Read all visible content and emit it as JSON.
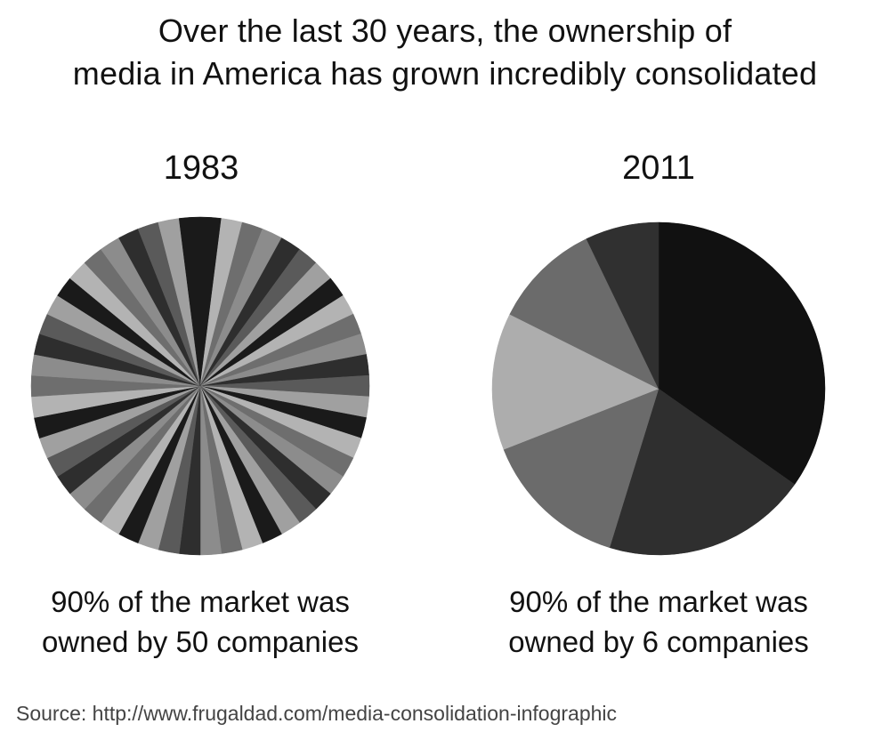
{
  "title": {
    "line1": "Over the last 30 years, the ownership of",
    "line2": "media in America has grown incredibly consolidated"
  },
  "chart_data": [
    {
      "type": "pie",
      "title": "1983",
      "caption_line1": "90% of the market was",
      "caption_line2": "owned by 50 companies",
      "values": [
        1,
        1,
        1,
        1,
        1,
        1,
        1,
        1,
        1,
        1,
        1,
        1,
        1,
        1,
        1,
        1,
        1,
        1,
        1,
        1,
        1,
        1,
        1,
        1,
        1,
        1,
        1,
        1,
        1,
        1,
        1,
        1,
        1,
        1,
        1,
        1,
        1,
        1,
        1,
        1,
        1,
        1,
        1,
        1,
        1,
        1,
        1,
        1,
        1,
        1
      ],
      "colors": [
        "#1a1a1a",
        "#b3b3b3",
        "#6e6e6e",
        "#8c8c8c",
        "#2e2e2e",
        "#5a5a5a",
        "#a0a0a0"
      ]
    },
    {
      "type": "pie",
      "title": "2011",
      "caption_line1": "90% of the market was",
      "caption_line2": "owned by 6 companies",
      "values": [
        36.5,
        21,
        15,
        14,
        11,
        7.5
      ],
      "colors": [
        "#111111",
        "#2f2f2f",
        "#6b6b6b",
        "#adadad",
        "#6b6b6b",
        "#303030"
      ]
    }
  ],
  "source": "Source: http://www.frugaldad.com/media-consolidation-infographic"
}
